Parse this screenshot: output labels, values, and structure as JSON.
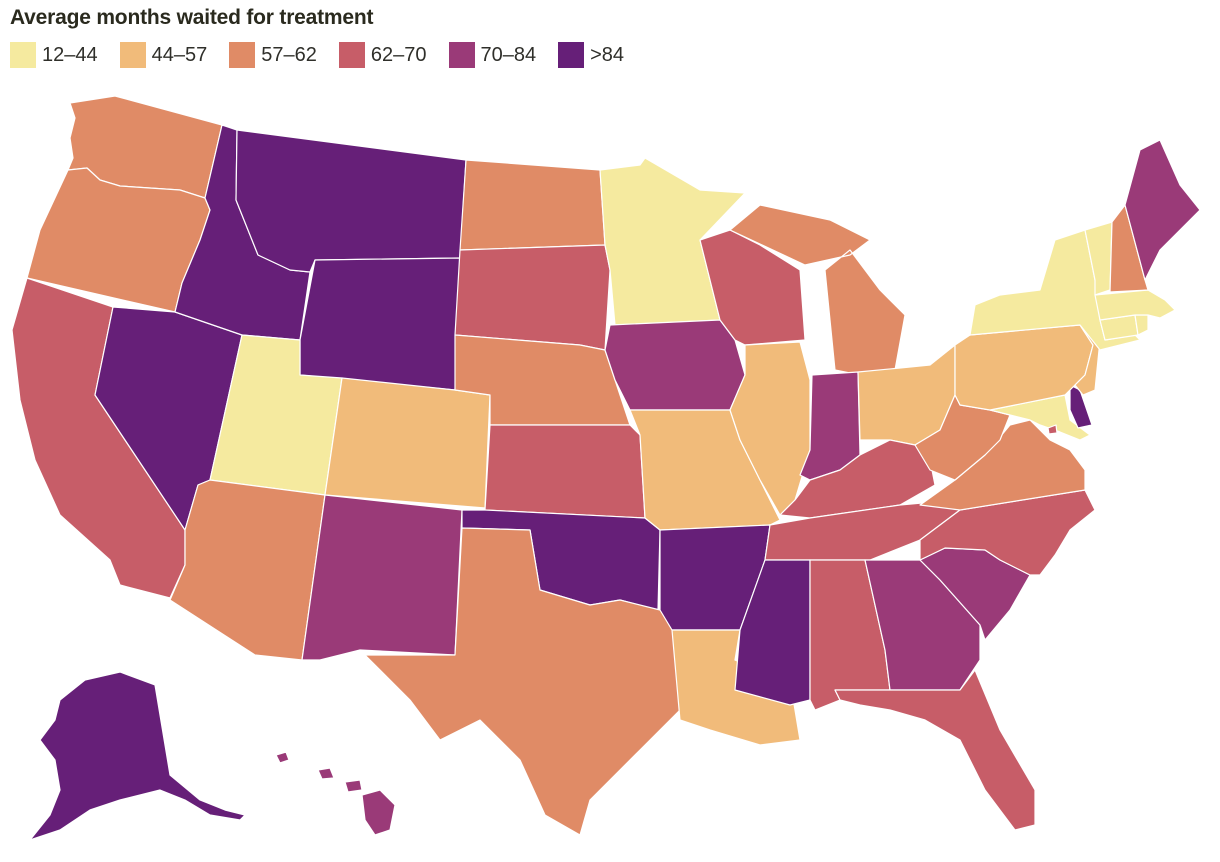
{
  "title": "Average months waited for treatment",
  "legend": [
    {
      "label": "12–44",
      "color": "#f5ea9f"
    },
    {
      "label": "44–57",
      "color": "#f1bb7a"
    },
    {
      "label": "57–62",
      "color": "#e08b66"
    },
    {
      "label": "62–70",
      "color": "#c75d68"
    },
    {
      "label": "70–84",
      "color": "#9a3a78"
    },
    {
      "label": ">84",
      "color": "#661f78"
    }
  ],
  "states": [
    {
      "id": "WA",
      "bin": 2
    },
    {
      "id": "OR",
      "bin": 2
    },
    {
      "id": "CA",
      "bin": 3
    },
    {
      "id": "NV",
      "bin": 5
    },
    {
      "id": "ID",
      "bin": 5
    },
    {
      "id": "MT",
      "bin": 5
    },
    {
      "id": "WY",
      "bin": 5
    },
    {
      "id": "UT",
      "bin": 0
    },
    {
      "id": "AZ",
      "bin": 2
    },
    {
      "id": "CO",
      "bin": 1
    },
    {
      "id": "NM",
      "bin": 4
    },
    {
      "id": "ND",
      "bin": 2
    },
    {
      "id": "SD",
      "bin": 3
    },
    {
      "id": "NE",
      "bin": 2
    },
    {
      "id": "KS",
      "bin": 3
    },
    {
      "id": "OK",
      "bin": 5
    },
    {
      "id": "TX",
      "bin": 2
    },
    {
      "id": "MN",
      "bin": 0
    },
    {
      "id": "IA",
      "bin": 4
    },
    {
      "id": "MO",
      "bin": 1
    },
    {
      "id": "AR",
      "bin": 5
    },
    {
      "id": "LA",
      "bin": 1
    },
    {
      "id": "WI",
      "bin": 3
    },
    {
      "id": "IL",
      "bin": 1
    },
    {
      "id": "MI",
      "bin": 2
    },
    {
      "id": "IN",
      "bin": 4
    },
    {
      "id": "OH",
      "bin": 1
    },
    {
      "id": "KY",
      "bin": 3
    },
    {
      "id": "TN",
      "bin": 3
    },
    {
      "id": "MS",
      "bin": 5
    },
    {
      "id": "AL",
      "bin": 3
    },
    {
      "id": "GA",
      "bin": 4
    },
    {
      "id": "FL",
      "bin": 3
    },
    {
      "id": "SC",
      "bin": 4
    },
    {
      "id": "NC",
      "bin": 3
    },
    {
      "id": "VA",
      "bin": 2
    },
    {
      "id": "WV",
      "bin": 2
    },
    {
      "id": "PA",
      "bin": 1
    },
    {
      "id": "NY",
      "bin": 0
    },
    {
      "id": "VT",
      "bin": 0
    },
    {
      "id": "NH",
      "bin": 2
    },
    {
      "id": "ME",
      "bin": 4
    },
    {
      "id": "MA",
      "bin": 0
    },
    {
      "id": "CT",
      "bin": 0
    },
    {
      "id": "RI",
      "bin": 0
    },
    {
      "id": "NJ",
      "bin": 1
    },
    {
      "id": "DE",
      "bin": 5
    },
    {
      "id": "MD",
      "bin": 0
    },
    {
      "id": "DC",
      "bin": 3
    },
    {
      "id": "AK",
      "bin": 5
    },
    {
      "id": "HI",
      "bin": 4
    }
  ]
}
